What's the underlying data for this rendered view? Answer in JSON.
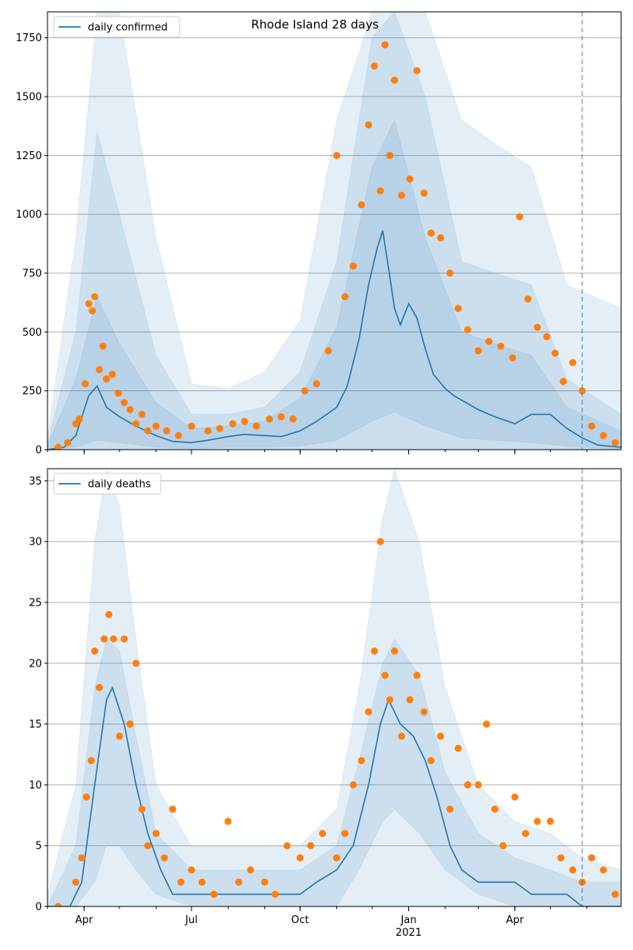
{
  "title": "Rhode Island 28 days",
  "colors": {
    "line": "#1f77b4",
    "points": "#ff7f0e",
    "band": "#1f77b4",
    "vline": "#1f77b4",
    "grid": "#b0b0b0"
  },
  "forecast_marker_date": "2021-05-28",
  "chart_data": [
    {
      "type": "line",
      "legend": "daily confirmed",
      "legend_position": "top-left",
      "xlim": [
        "2020-03-01",
        "2021-06-30"
      ],
      "ylim": [
        0,
        1860
      ],
      "yticks": [
        0,
        250,
        500,
        750,
        1000,
        1250,
        1500,
        1750
      ],
      "xticks": [
        {
          "date": "2020-04-01",
          "label": "Apr",
          "major": true
        },
        {
          "date": "2020-07-01",
          "label": "Jul",
          "major": true
        },
        {
          "date": "2020-10-01",
          "label": "Oct",
          "major": true
        },
        {
          "date": "2021-01-01",
          "label": "Jan",
          "major": true
        },
        {
          "date": "2021-04-01",
          "label": "Apr",
          "major": true
        }
      ],
      "year_label": "2021",
      "grid": true,
      "line_series": {
        "dates": [
          "2020-03-01",
          "2020-03-15",
          "2020-03-25",
          "2020-04-05",
          "2020-04-12",
          "2020-04-20",
          "2020-05-01",
          "2020-05-15",
          "2020-06-01",
          "2020-06-15",
          "2020-07-01",
          "2020-07-15",
          "2020-08-01",
          "2020-08-15",
          "2020-09-01",
          "2020-09-15",
          "2020-10-01",
          "2020-10-15",
          "2020-11-01",
          "2020-11-10",
          "2020-11-20",
          "2020-11-28",
          "2020-12-05",
          "2020-12-10",
          "2020-12-15",
          "2020-12-20",
          "2020-12-25",
          "2021-01-01",
          "2021-01-08",
          "2021-01-15",
          "2021-01-22",
          "2021-02-01",
          "2021-02-08",
          "2021-02-15",
          "2021-03-01",
          "2021-03-15",
          "2021-04-01",
          "2021-04-15",
          "2021-05-01",
          "2021-05-15",
          "2021-05-28",
          "2021-06-10",
          "2021-06-30"
        ],
        "values": [
          0,
          10,
          60,
          230,
          270,
          180,
          140,
          100,
          60,
          35,
          30,
          40,
          55,
          65,
          60,
          55,
          80,
          120,
          180,
          270,
          470,
          700,
          850,
          930,
          770,
          600,
          530,
          620,
          560,
          430,
          320,
          260,
          230,
          210,
          170,
          140,
          110,
          150,
          150,
          90,
          50,
          20,
          10
        ]
      },
      "bands": [
        {
          "dates": [
            "2020-03-01",
            "2020-03-25",
            "2020-04-12",
            "2020-05-01",
            "2020-06-01",
            "2020-07-01",
            "2020-08-01",
            "2020-09-01",
            "2020-10-01",
            "2020-11-01",
            "2020-12-01",
            "2020-12-20",
            "2021-01-15",
            "2021-02-15",
            "2021-03-15",
            "2021-04-15",
            "2021-05-15",
            "2021-06-30"
          ],
          "lower": [
            0,
            0,
            0,
            0,
            0,
            0,
            0,
            0,
            0,
            0,
            0,
            0,
            0,
            0,
            0,
            0,
            0,
            0
          ],
          "upper": [
            50,
            900,
            1860,
            1860,
            900,
            280,
            260,
            330,
            550,
            1400,
            1860,
            1860,
            1860,
            1400,
            1300,
            1200,
            700,
            600
          ]
        },
        {
          "dates": [
            "2020-03-01",
            "2020-03-25",
            "2020-04-12",
            "2020-05-01",
            "2020-06-01",
            "2020-07-01",
            "2020-08-01",
            "2020-09-01",
            "2020-10-01",
            "2020-11-01",
            "2020-12-01",
            "2020-12-20",
            "2021-01-15",
            "2021-02-15",
            "2021-03-15",
            "2021-04-15",
            "2021-05-15",
            "2021-06-30"
          ],
          "lower": [
            0,
            0,
            0,
            0,
            0,
            0,
            0,
            0,
            0,
            0,
            0,
            0,
            0,
            0,
            0,
            0,
            0,
            0
          ],
          "upper": [
            30,
            500,
            1350,
            1000,
            400,
            150,
            150,
            180,
            330,
            800,
            1750,
            1860,
            1500,
            800,
            750,
            700,
            300,
            150
          ]
        },
        {
          "dates": [
            "2020-03-01",
            "2020-03-25",
            "2020-04-12",
            "2020-05-01",
            "2020-06-01",
            "2020-07-01",
            "2020-08-01",
            "2020-09-01",
            "2020-10-01",
            "2020-11-01",
            "2020-12-01",
            "2020-12-20",
            "2021-01-15",
            "2021-02-15",
            "2021-03-15",
            "2021-04-15",
            "2021-05-15",
            "2021-06-30"
          ],
          "lower": [
            0,
            10,
            40,
            30,
            10,
            5,
            10,
            10,
            15,
            40,
            120,
            160,
            100,
            50,
            40,
            30,
            15,
            0
          ],
          "upper": [
            20,
            300,
            650,
            450,
            200,
            90,
            100,
            120,
            220,
            520,
            1200,
            1400,
            900,
            500,
            450,
            400,
            180,
            80
          ]
        }
      ],
      "points": {
        "dates": [
          "2020-03-10",
          "2020-03-18",
          "2020-03-25",
          "2020-03-28",
          "2020-04-02",
          "2020-04-05",
          "2020-04-08",
          "2020-04-10",
          "2020-04-14",
          "2020-04-17",
          "2020-04-20",
          "2020-04-25",
          "2020-04-30",
          "2020-05-05",
          "2020-05-10",
          "2020-05-15",
          "2020-05-20",
          "2020-05-25",
          "2020-06-01",
          "2020-06-10",
          "2020-06-20",
          "2020-07-01",
          "2020-07-15",
          "2020-07-25",
          "2020-08-05",
          "2020-08-15",
          "2020-08-25",
          "2020-09-05",
          "2020-09-15",
          "2020-09-25",
          "2020-10-05",
          "2020-10-15",
          "2020-10-25",
          "2020-11-01",
          "2020-11-08",
          "2020-11-15",
          "2020-11-22",
          "2020-11-28",
          "2020-12-03",
          "2020-12-08",
          "2020-12-12",
          "2020-12-16",
          "2020-12-20",
          "2020-12-26",
          "2021-01-02",
          "2021-01-08",
          "2021-01-14",
          "2021-01-20",
          "2021-01-28",
          "2021-02-05",
          "2021-02-12",
          "2021-02-20",
          "2021-03-01",
          "2021-03-10",
          "2021-03-20",
          "2021-03-30",
          "2021-04-05",
          "2021-04-12",
          "2021-04-20",
          "2021-04-28",
          "2021-05-05",
          "2021-05-12",
          "2021-05-20",
          "2021-05-28",
          "2021-06-05",
          "2021-06-15",
          "2021-06-25"
        ],
        "values": [
          10,
          30,
          110,
          130,
          280,
          620,
          590,
          650,
          340,
          440,
          300,
          320,
          240,
          200,
          170,
          110,
          150,
          80,
          100,
          80,
          60,
          100,
          80,
          90,
          110,
          120,
          100,
          130,
          140,
          130,
          250,
          280,
          420,
          1250,
          650,
          780,
          1040,
          1380,
          1630,
          1100,
          1720,
          1250,
          1570,
          1080,
          1150,
          1610,
          1090,
          920,
          900,
          750,
          600,
          510,
          420,
          460,
          440,
          390,
          990,
          640,
          520,
          480,
          410,
          290,
          370,
          250,
          100,
          60,
          30
        ]
      }
    },
    {
      "type": "line",
      "legend": "daily deaths",
      "legend_position": "top-left",
      "xlim": [
        "2020-03-01",
        "2021-06-30"
      ],
      "ylim": [
        0,
        36
      ],
      "yticks": [
        0,
        5,
        10,
        15,
        20,
        25,
        30,
        35
      ],
      "xticks": [
        {
          "date": "2020-04-01",
          "label": "Apr",
          "major": true
        },
        {
          "date": "2020-07-01",
          "label": "Jul",
          "major": true
        },
        {
          "date": "2020-10-01",
          "label": "Oct",
          "major": true
        },
        {
          "date": "2021-01-01",
          "label": "Jan",
          "major": true
        },
        {
          "date": "2021-04-01",
          "label": "Apr",
          "major": true
        }
      ],
      "year_label": "2021",
      "grid": true,
      "line_series": {
        "dates": [
          "2020-03-01",
          "2020-03-20",
          "2020-03-30",
          "2020-04-10",
          "2020-04-20",
          "2020-04-25",
          "2020-05-05",
          "2020-05-15",
          "2020-05-25",
          "2020-06-05",
          "2020-06-15",
          "2020-07-01",
          "2020-07-15",
          "2020-08-01",
          "2020-08-15",
          "2020-09-01",
          "2020-09-15",
          "2020-10-01",
          "2020-10-15",
          "2020-11-01",
          "2020-11-15",
          "2020-11-28",
          "2020-12-08",
          "2020-12-15",
          "2020-12-25",
          "2021-01-05",
          "2021-01-15",
          "2021-01-25",
          "2021-02-05",
          "2021-02-15",
          "2021-03-01",
          "2021-03-15",
          "2021-04-01",
          "2021-04-15",
          "2021-05-01",
          "2021-05-15",
          "2021-05-28",
          "2021-06-30"
        ],
        "values": [
          0,
          0,
          2,
          10,
          17,
          18,
          15,
          10,
          6,
          3,
          1,
          1,
          1,
          1,
          1,
          1,
          1,
          1,
          2,
          3,
          5,
          10,
          15,
          17,
          15,
          14,
          12,
          9,
          5,
          3,
          2,
          2,
          2,
          1,
          1,
          1,
          0,
          0
        ]
      },
      "bands": [
        {
          "dates": [
            "2020-03-01",
            "2020-03-25",
            "2020-04-10",
            "2020-04-20",
            "2020-05-01",
            "2020-05-15",
            "2020-06-01",
            "2020-07-01",
            "2020-08-01",
            "2020-09-01",
            "2020-10-01",
            "2020-11-01",
            "2020-11-20",
            "2020-12-10",
            "2020-12-20",
            "2021-01-10",
            "2021-02-01",
            "2021-03-01",
            "2021-04-01",
            "2021-05-01",
            "2021-05-28",
            "2021-06-30"
          ],
          "lower": [
            0,
            0,
            0,
            0,
            0,
            0,
            0,
            0,
            0,
            0,
            0,
            0,
            0,
            0,
            0,
            0,
            0,
            0,
            0,
            0,
            0,
            0
          ],
          "upper": [
            1,
            10,
            30,
            36,
            33,
            22,
            10,
            5,
            5,
            5,
            5,
            8,
            18,
            32,
            36,
            30,
            18,
            10,
            7,
            6,
            4,
            3
          ]
        },
        {
          "dates": [
            "2020-03-01",
            "2020-03-25",
            "2020-04-10",
            "2020-04-20",
            "2020-05-01",
            "2020-05-15",
            "2020-06-01",
            "2020-07-01",
            "2020-08-01",
            "2020-09-01",
            "2020-10-01",
            "2020-11-01",
            "2020-11-20",
            "2020-12-10",
            "2020-12-20",
            "2021-01-10",
            "2021-02-01",
            "2021-03-01",
            "2021-04-01",
            "2021-05-01",
            "2021-05-28",
            "2021-06-30"
          ],
          "lower": [
            0,
            0,
            2,
            5,
            5,
            3,
            1,
            0,
            0,
            0,
            0,
            0,
            3,
            7,
            8,
            6,
            3,
            1,
            0,
            0,
            0,
            0
          ],
          "upper": [
            0,
            5,
            18,
            22,
            21,
            14,
            6,
            3,
            3,
            3,
            3,
            5,
            12,
            20,
            22,
            19,
            11,
            6,
            4,
            3,
            2,
            2
          ]
        }
      ],
      "points": {
        "dates": [
          "2020-03-10",
          "2020-03-25",
          "2020-03-30",
          "2020-04-03",
          "2020-04-07",
          "2020-04-10",
          "2020-04-14",
          "2020-04-18",
          "2020-04-22",
          "2020-04-26",
          "2020-05-01",
          "2020-05-05",
          "2020-05-10",
          "2020-05-15",
          "2020-05-20",
          "2020-05-25",
          "2020-06-01",
          "2020-06-08",
          "2020-06-15",
          "2020-06-22",
          "2020-07-01",
          "2020-07-10",
          "2020-07-20",
          "2020-08-01",
          "2020-08-10",
          "2020-08-20",
          "2020-09-01",
          "2020-09-10",
          "2020-09-20",
          "2020-10-01",
          "2020-10-10",
          "2020-10-20",
          "2020-11-01",
          "2020-11-08",
          "2020-11-15",
          "2020-11-22",
          "2020-11-28",
          "2020-12-03",
          "2020-12-08",
          "2020-12-12",
          "2020-12-16",
          "2020-12-20",
          "2020-12-26",
          "2021-01-02",
          "2021-01-08",
          "2021-01-14",
          "2021-01-20",
          "2021-01-28",
          "2021-02-05",
          "2021-02-12",
          "2021-02-20",
          "2021-03-01",
          "2021-03-08",
          "2021-03-15",
          "2021-03-22",
          "2021-04-01",
          "2021-04-10",
          "2021-04-20",
          "2021-05-01",
          "2021-05-10",
          "2021-05-20",
          "2021-05-28",
          "2021-06-05",
          "2021-06-15",
          "2021-06-25"
        ],
        "values": [
          0,
          2,
          4,
          9,
          12,
          21,
          18,
          22,
          24,
          22,
          14,
          22,
          15,
          20,
          8,
          5,
          6,
          4,
          8,
          2,
          3,
          2,
          1,
          7,
          2,
          3,
          2,
          1,
          5,
          4,
          5,
          6,
          4,
          6,
          10,
          12,
          16,
          21,
          30,
          19,
          17,
          21,
          14,
          17,
          19,
          16,
          12,
          14,
          8,
          13,
          10,
          10,
          15,
          8,
          5,
          9,
          6,
          7,
          7,
          4,
          3,
          2,
          4,
          3,
          1
        ]
      }
    }
  ]
}
